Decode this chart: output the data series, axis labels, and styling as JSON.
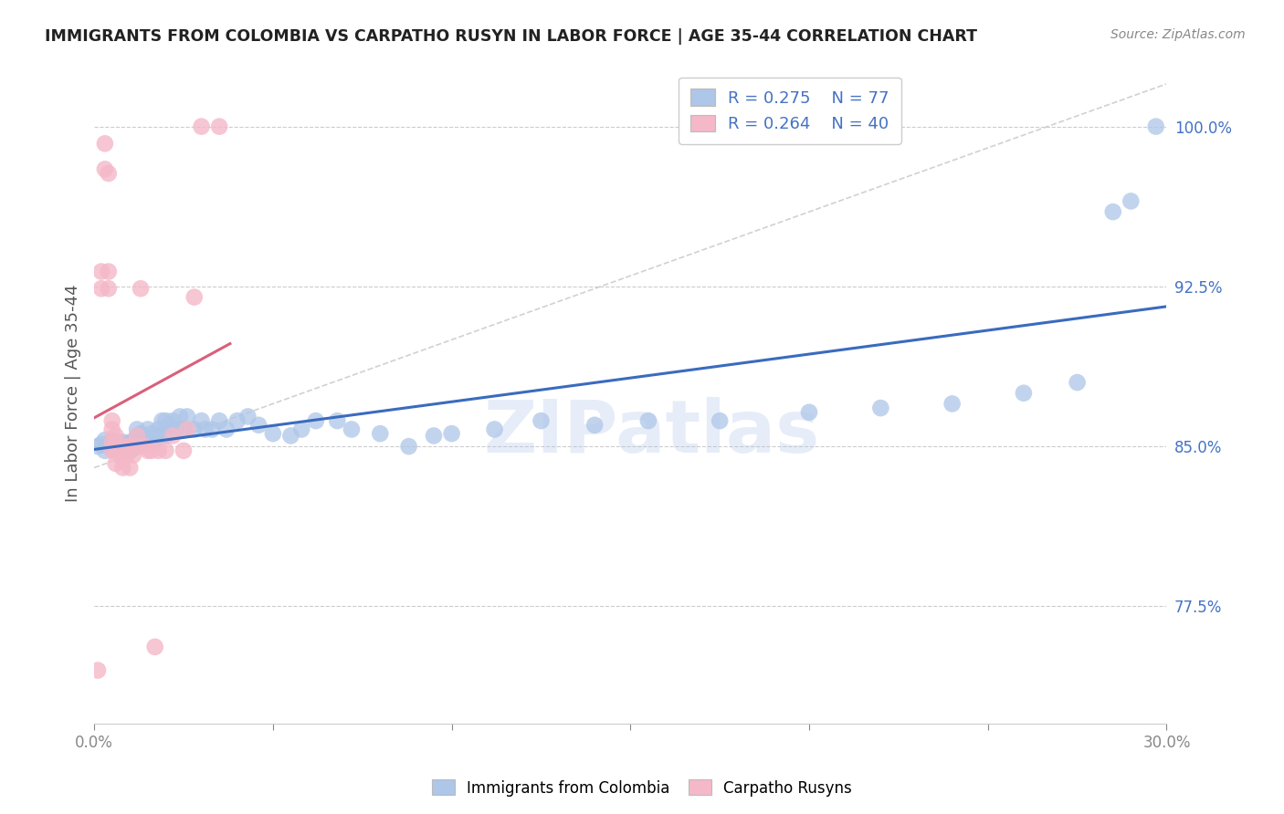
{
  "title": "IMMIGRANTS FROM COLOMBIA VS CARPATHO RUSYN IN LABOR FORCE | AGE 35-44 CORRELATION CHART",
  "source": "Source: ZipAtlas.com",
  "ylabel": "In Labor Force | Age 35-44",
  "xlim": [
    0.0,
    0.3
  ],
  "ylim": [
    0.72,
    1.03
  ],
  "xtick_positions": [
    0.0,
    0.05,
    0.1,
    0.15,
    0.2,
    0.25,
    0.3
  ],
  "xticklabels": [
    "0.0%",
    "",
    "",
    "",
    "",
    "",
    "30.0%"
  ],
  "ytick_positions": [
    0.775,
    0.85,
    0.925,
    1.0
  ],
  "yticklabels": [
    "77.5%",
    "85.0%",
    "92.5%",
    "100.0%"
  ],
  "colombia_R": 0.275,
  "colombia_N": 77,
  "carpatho_R": 0.264,
  "carpatho_N": 40,
  "colombia_color": "#aec6e8",
  "carpatho_color": "#f4b8c8",
  "colombia_line_color": "#3a6bbf",
  "carpatho_line_color": "#d9607a",
  "diagonal_color": "#cccccc",
  "legend_color": "#4472c4",
  "watermark": "ZIPatlas",
  "colombia_x": [
    0.001,
    0.002,
    0.003,
    0.003,
    0.004,
    0.005,
    0.005,
    0.006,
    0.006,
    0.007,
    0.007,
    0.007,
    0.008,
    0.008,
    0.008,
    0.009,
    0.009,
    0.01,
    0.01,
    0.01,
    0.01,
    0.011,
    0.011,
    0.012,
    0.012,
    0.013,
    0.013,
    0.014,
    0.014,
    0.015,
    0.015,
    0.016,
    0.017,
    0.017,
    0.018,
    0.018,
    0.019,
    0.02,
    0.02,
    0.021,
    0.022,
    0.023,
    0.024,
    0.025,
    0.026,
    0.028,
    0.03,
    0.031,
    0.033,
    0.035,
    0.037,
    0.04,
    0.043,
    0.046,
    0.05,
    0.055,
    0.058,
    0.062,
    0.068,
    0.072,
    0.08,
    0.088,
    0.095,
    0.1,
    0.112,
    0.125,
    0.14,
    0.155,
    0.175,
    0.2,
    0.22,
    0.24,
    0.26,
    0.275,
    0.285,
    0.29,
    0.297
  ],
  "colombia_y": [
    0.85,
    0.851,
    0.848,
    0.853,
    0.85,
    0.849,
    0.853,
    0.85,
    0.852,
    0.847,
    0.851,
    0.852,
    0.85,
    0.848,
    0.852,
    0.849,
    0.851,
    0.848,
    0.85,
    0.852,
    0.851,
    0.852,
    0.849,
    0.855,
    0.858,
    0.853,
    0.856,
    0.853,
    0.855,
    0.858,
    0.854,
    0.856,
    0.853,
    0.855,
    0.858,
    0.855,
    0.862,
    0.855,
    0.862,
    0.86,
    0.862,
    0.858,
    0.864,
    0.858,
    0.864,
    0.858,
    0.862,
    0.858,
    0.858,
    0.862,
    0.858,
    0.862,
    0.864,
    0.86,
    0.856,
    0.855,
    0.858,
    0.862,
    0.862,
    0.858,
    0.856,
    0.85,
    0.855,
    0.856,
    0.858,
    0.862,
    0.86,
    0.862,
    0.862,
    0.866,
    0.868,
    0.87,
    0.875,
    0.88,
    0.96,
    0.965,
    1.0
  ],
  "carpatho_x": [
    0.001,
    0.002,
    0.002,
    0.003,
    0.003,
    0.004,
    0.004,
    0.004,
    0.005,
    0.005,
    0.005,
    0.005,
    0.006,
    0.006,
    0.006,
    0.006,
    0.007,
    0.007,
    0.008,
    0.008,
    0.009,
    0.009,
    0.01,
    0.01,
    0.011,
    0.011,
    0.012,
    0.013,
    0.014,
    0.015,
    0.016,
    0.017,
    0.018,
    0.02,
    0.022,
    0.025,
    0.026,
    0.028,
    0.03,
    0.035
  ],
  "carpatho_y": [
    0.745,
    0.924,
    0.932,
    0.98,
    0.992,
    0.924,
    0.932,
    0.978,
    0.848,
    0.852,
    0.858,
    0.862,
    0.842,
    0.848,
    0.852,
    0.855,
    0.848,
    0.85,
    0.84,
    0.844,
    0.846,
    0.85,
    0.84,
    0.85,
    0.846,
    0.85,
    0.855,
    0.924,
    0.85,
    0.848,
    0.848,
    0.756,
    0.848,
    0.848,
    0.855,
    0.848,
    0.858,
    0.92,
    1.0,
    1.0
  ]
}
